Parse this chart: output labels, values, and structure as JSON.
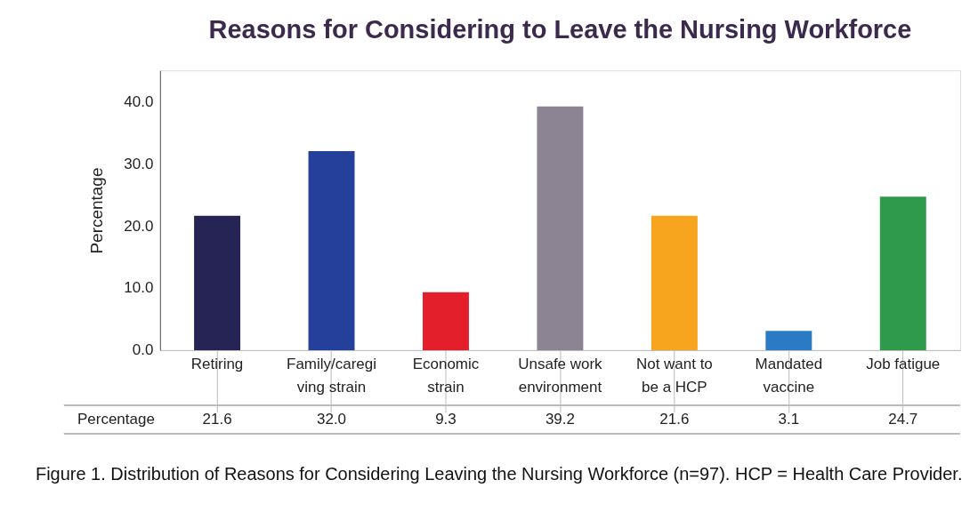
{
  "chart_data": {
    "type": "bar",
    "title": "Reasons for Considering to Leave the Nursing Workforce",
    "ylabel": "Percentage",
    "categories": [
      "Retiring",
      "Family/caregiving strain",
      "Economic strain",
      "Unsafe work environment",
      "Not want to be a HCP",
      "Mandated vaccine",
      "Job fatigue"
    ],
    "values": [
      21.6,
      32.0,
      9.3,
      39.2,
      21.6,
      3.1,
      24.7
    ],
    "colors": [
      "#262455",
      "#24409a",
      "#e31f2c",
      "#8c8393",
      "#f7a51f",
      "#2b7bc4",
      "#2f9a4c"
    ],
    "ylim": [
      0,
      45
    ],
    "yticks": [
      {
        "value": 0,
        "label": "0.0"
      },
      {
        "value": 10,
        "label": "10.0"
      },
      {
        "value": 20,
        "label": "20.0"
      },
      {
        "value": 30,
        "label": "30.0"
      },
      {
        "value": 40,
        "label": "40.0"
      }
    ],
    "value_labels": [
      "21.6",
      "32.0",
      "9.3",
      "39.2",
      "21.6",
      "3.1",
      "24.7"
    ],
    "grid": false,
    "annotations": [
      "Percentage",
      "Figure 1. Distribution of Reasons for Considering Leaving the Nursing Workforce (n=97).  HCP = Health Care Provider."
    ]
  }
}
